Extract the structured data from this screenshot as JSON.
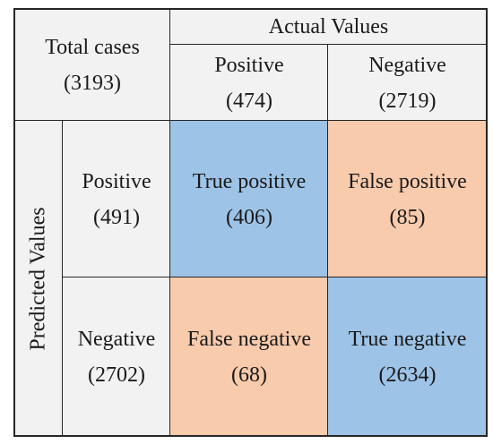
{
  "total": {
    "label": "Total cases",
    "count": "(3193)"
  },
  "actual": {
    "header": "Actual Values",
    "positive": {
      "label": "Positive",
      "count": "(474)"
    },
    "negative": {
      "label": "Negative",
      "count": "(2719)"
    }
  },
  "predicted": {
    "header": "Predicted Values",
    "positive": {
      "label": "Positive",
      "count": "(491)"
    },
    "negative": {
      "label": "Negative",
      "count": "(2702)"
    }
  },
  "matrix": {
    "tp": {
      "label": "True positive",
      "count": "(406)"
    },
    "fp": {
      "label": "False positive",
      "count": "(85)"
    },
    "fn": {
      "label": "False negative",
      "count": "(68)"
    },
    "tn": {
      "label": "True negative",
      "count": "(2634)"
    }
  },
  "colors": {
    "header_bg": "#f2f2f2",
    "true_bg": "#9dc3e6",
    "false_bg": "#f8cbad",
    "border": "#262626"
  }
}
